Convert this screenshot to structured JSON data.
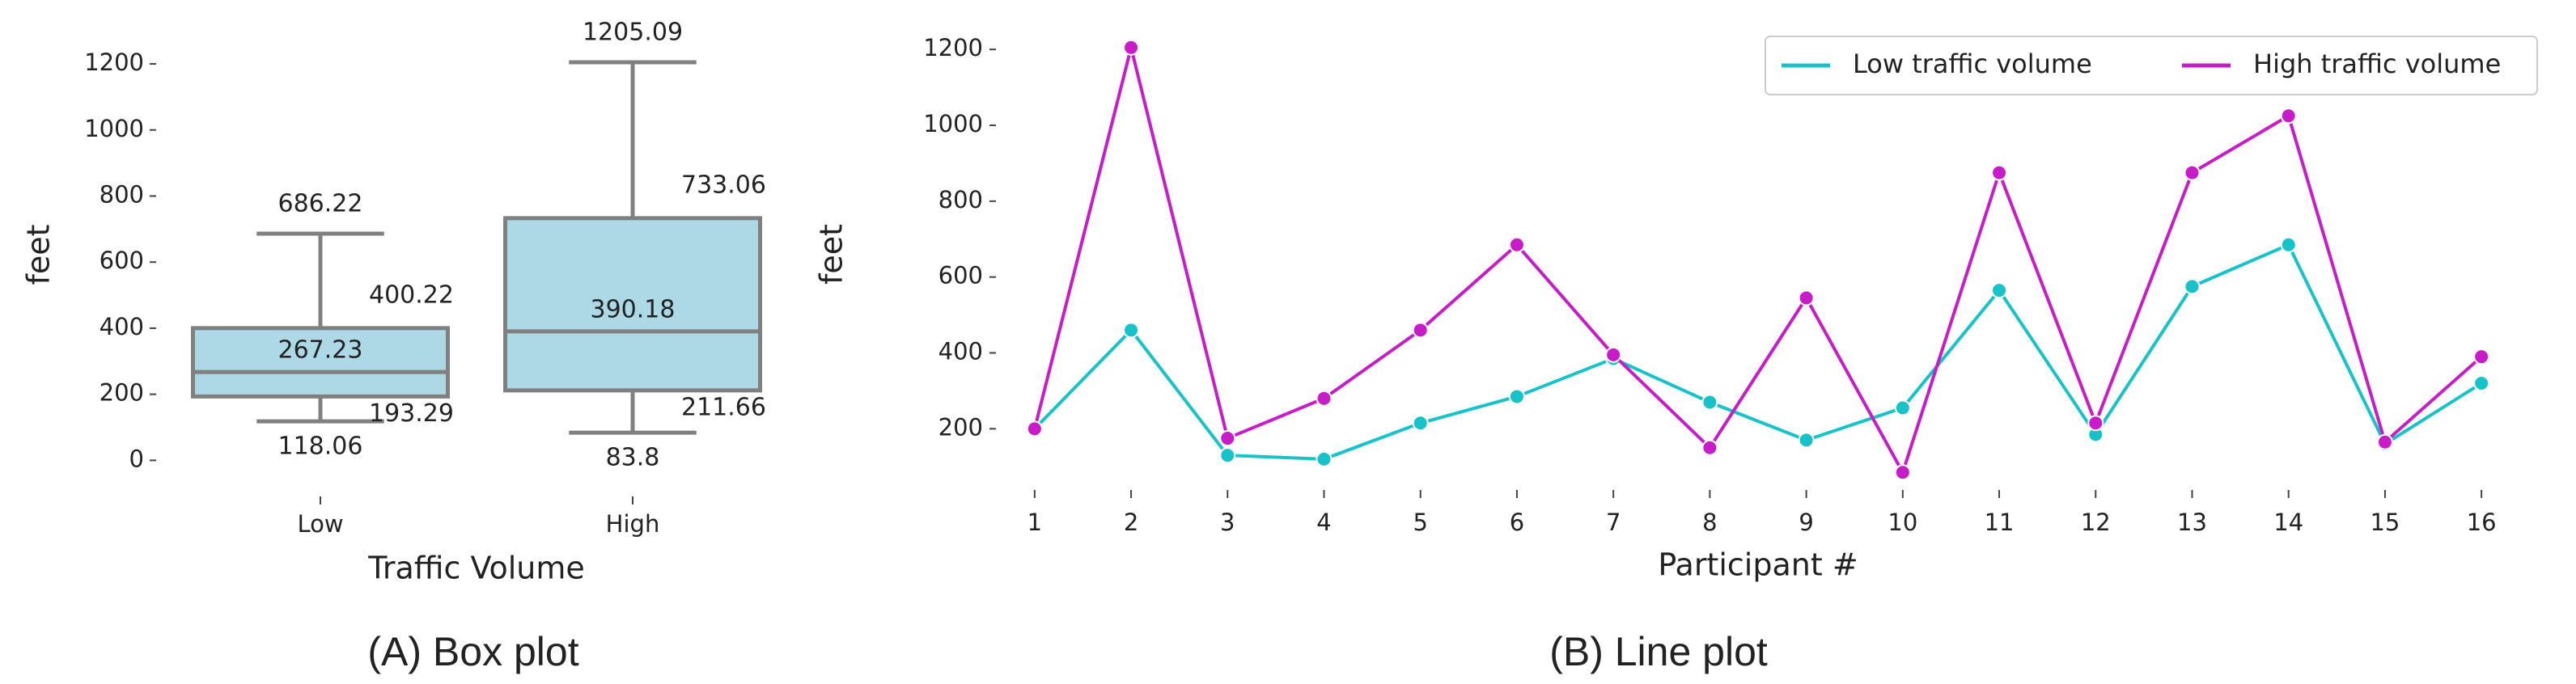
{
  "chart_data": [
    {
      "type": "box",
      "caption": "(A) Box plot",
      "xlabel": "Traffic Volume",
      "ylabel": "feet",
      "categories": [
        "Low",
        "High"
      ],
      "boxes": [
        {
          "low": 118.06,
          "q1": 193.29,
          "median": 267.23,
          "q3": 400.22,
          "high": 686.22
        },
        {
          "low": 83.8,
          "q1": 211.66,
          "median": 390.18,
          "q3": 733.06,
          "high": 1205.09
        }
      ],
      "color": "#add8e6",
      "edge_color": "#808080",
      "ylim": [
        -75,
        1320
      ],
      "yticks": [
        0,
        200,
        400,
        600,
        800,
        1000,
        1200
      ]
    },
    {
      "type": "line",
      "caption": "(B) Line plot",
      "xlabel": "Participant #",
      "ylabel": "feet",
      "x": [
        1,
        2,
        3,
        4,
        5,
        6,
        7,
        8,
        9,
        10,
        11,
        12,
        13,
        14,
        15,
        16
      ],
      "series": [
        {
          "name": "Low traffic volume",
          "color": "#17c3c8",
          "values": [
            200,
            460,
            130,
            120,
            215,
            285,
            385,
            270,
            170,
            255,
            565,
            185,
            575,
            685,
            160,
            320
          ]
        },
        {
          "name": "High traffic volume",
          "color": "#c71cc7",
          "values": [
            200,
            1205,
            175,
            280,
            460,
            685,
            395,
            150,
            545,
            85,
            875,
            215,
            875,
            1025,
            165,
            390
          ]
        }
      ],
      "xlim": [
        0.8,
        16.2
      ],
      "xticks": [
        1,
        2,
        3,
        4,
        5,
        6,
        7,
        8,
        9,
        10,
        11,
        12,
        13,
        14,
        15,
        16
      ],
      "ylim": [
        60,
        1260
      ],
      "yticks": [
        200,
        400,
        600,
        800,
        1000,
        1200
      ],
      "legend": "upper right"
    }
  ]
}
